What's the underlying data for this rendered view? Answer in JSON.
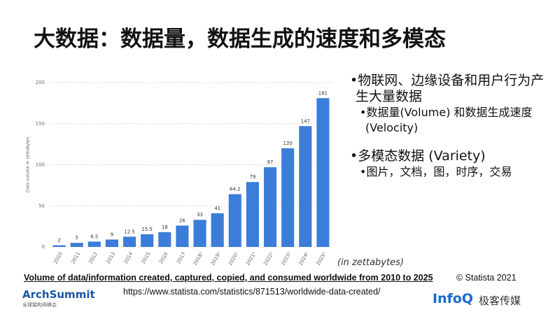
{
  "title": "大数据：数据量，数据生成的速度和多模态",
  "bullets": [
    {
      "text": "物联网、边缘设备和用户行为产生大量数据",
      "sub": [
        "数据量(Volume) 和数据生成速度(Velocity)"
      ]
    },
    {
      "text": "多模态数据 (Variety)",
      "sub": [
        "图片，文档，图，时序，交易"
      ]
    }
  ],
  "unit_note": "(in zettabytes)",
  "caption": "Volume of data/information created, captured, copied, and consumed worldwide from 2010 to 2025",
  "source": "© Statista 2021",
  "url": "https://www.statista.com/statistics/871513/worldwide-data-created/",
  "logos": {
    "left": "ArchSummit",
    "left_sub": "全球架构师峰会",
    "right": "InfoQ",
    "right_sub": "极客传媒"
  },
  "chart_data": {
    "type": "bar",
    "y_label": "Data volume in zettabytes",
    "categories": [
      "2010",
      "2011",
      "2012",
      "2013",
      "2014",
      "2015",
      "2016",
      "2017",
      "2018¹",
      "2019¹",
      "2020¹",
      "2021²",
      "2022²",
      "2023²",
      "2024²",
      "2025²"
    ],
    "values": [
      2,
      5,
      6.5,
      9,
      12.5,
      15.5,
      18,
      26,
      33,
      41,
      64.2,
      79,
      97,
      120,
      147,
      181
    ],
    "color": "#3b7dd8",
    "ylim": [
      0,
      200
    ],
    "yticks": [
      0,
      50,
      100,
      150,
      200
    ],
    "grid": true
  }
}
